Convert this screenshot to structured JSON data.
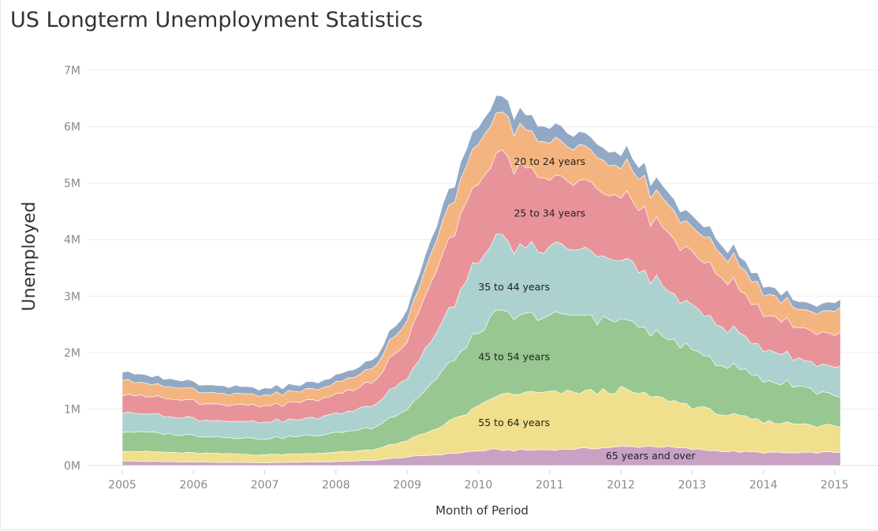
{
  "title": "US Longterm Unemployment Statistics",
  "chart_data": {
    "type": "area",
    "stacked": true,
    "xlabel": "Month of Period",
    "ylabel": "Unemployed",
    "x_start": "2005-01",
    "x_end": "2015-02",
    "ylim": [
      0,
      7500000
    ],
    "yticks": [
      {
        "value": 0,
        "label": "0M"
      },
      {
        "value": 1000000,
        "label": "1M"
      },
      {
        "value": 2000000,
        "label": "2M"
      },
      {
        "value": 3000000,
        "label": "3M"
      },
      {
        "value": 4000000,
        "label": "4M"
      },
      {
        "value": 5000000,
        "label": "5M"
      },
      {
        "value": 6000000,
        "label": "6M"
      },
      {
        "value": 7000000,
        "label": "7M"
      }
    ],
    "xticks": [
      "2005",
      "2006",
      "2007",
      "2008",
      "2009",
      "2010",
      "2011",
      "2012",
      "2013",
      "2014",
      "2015"
    ],
    "grid": "horizontal",
    "x_anchors": [
      "2005-01",
      "2005-07",
      "2006-01",
      "2006-07",
      "2007-01",
      "2007-07",
      "2008-01",
      "2008-07",
      "2009-01",
      "2009-07",
      "2010-01",
      "2010-04",
      "2010-07",
      "2011-01",
      "2011-07",
      "2012-01",
      "2012-07",
      "2013-01",
      "2013-07",
      "2014-01",
      "2014-07",
      "2015-02"
    ],
    "series": [
      {
        "name": "65 years and over",
        "color": "#c9a2c3",
        "values": [
          80000,
          70000,
          60000,
          55000,
          50000,
          60000,
          70000,
          90000,
          150000,
          200000,
          260000,
          280000,
          270000,
          280000,
          300000,
          330000,
          340000,
          290000,
          250000,
          230000,
          220000,
          240000
        ]
      },
      {
        "name": "55 to 64 years",
        "color": "#f0df8c",
        "values": [
          180000,
          170000,
          160000,
          150000,
          140000,
          150000,
          160000,
          190000,
          280000,
          520000,
          760000,
          950000,
          1000000,
          1000000,
          1000000,
          1000000,
          870000,
          760000,
          650000,
          540000,
          520000,
          450000
        ]
      },
      {
        "name": "45 to 54 years",
        "color": "#98c791",
        "values": [
          350000,
          330000,
          310000,
          290000,
          290000,
          310000,
          340000,
          400000,
          560000,
          950000,
          1300000,
          1450000,
          1350000,
          1350000,
          1350000,
          1230000,
          1120000,
          990000,
          870000,
          740000,
          680000,
          520000
        ]
      },
      {
        "name": "35 to 44 years",
        "color": "#acd1ce",
        "values": [
          350000,
          320000,
          300000,
          290000,
          290000,
          300000,
          330000,
          390000,
          560000,
          900000,
          1250000,
          1330000,
          1200000,
          1200000,
          1200000,
          1070000,
          920000,
          780000,
          660000,
          540000,
          470000,
          520000
        ]
      },
      {
        "name": "25 to 34 years",
        "color": "#e8939a",
        "values": [
          330000,
          310000,
          300000,
          290000,
          280000,
          300000,
          330000,
          420000,
          660000,
          1200000,
          1450000,
          1500000,
          1380000,
          1250000,
          1150000,
          1150000,
          1050000,
          950000,
          850000,
          650000,
          560000,
          600000
        ]
      },
      {
        "name": "20 to 24 years",
        "color": "#f4b480",
        "values": [
          260000,
          220000,
          200000,
          190000,
          190000,
          190000,
          200000,
          240000,
          360000,
          560000,
          700000,
          720000,
          680000,
          650000,
          600000,
          550000,
          500000,
          450000,
          420000,
          380000,
          330000,
          420000
        ]
      },
      {
        "name": "",
        "color": "#92a9c6",
        "values": [
          150000,
          140000,
          130000,
          130000,
          120000,
          120000,
          130000,
          150000,
          200000,
          270000,
          300000,
          300000,
          280000,
          260000,
          240000,
          230000,
          210000,
          200000,
          170000,
          150000,
          130000,
          150000
        ]
      }
    ]
  }
}
